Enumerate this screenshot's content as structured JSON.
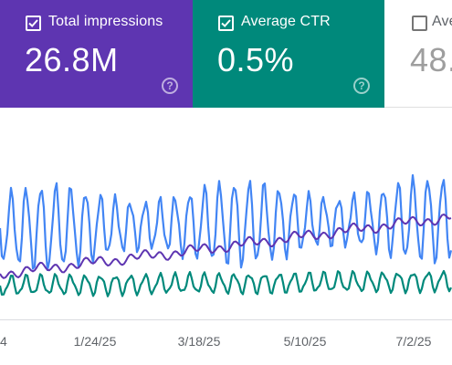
{
  "cards": {
    "impressions": {
      "label": "Total impressions",
      "value": "26.8M",
      "checked": true,
      "color": "#5e35b1"
    },
    "ctr": {
      "label": "Average CTR",
      "value": "0.5%",
      "checked": true,
      "color": "#00897b"
    },
    "position": {
      "label": "Ave",
      "value": "48.",
      "checked": false
    }
  },
  "chart_data": {
    "type": "line",
    "x_tick_labels": [
      "4",
      "1/24/25",
      "3/18/25",
      "5/10/25",
      "7/2/25"
    ],
    "y_axis": "hidden",
    "series": [
      {
        "color": "#4285f4",
        "note": "weekly oscillating series",
        "pattern": "weekly"
      },
      {
        "color": "#5e35b1",
        "note": "smooth series, rising trend",
        "pattern": "trend"
      },
      {
        "color": "#00897b",
        "note": "lower weekly oscillating series",
        "pattern": "weekly"
      }
    ]
  }
}
